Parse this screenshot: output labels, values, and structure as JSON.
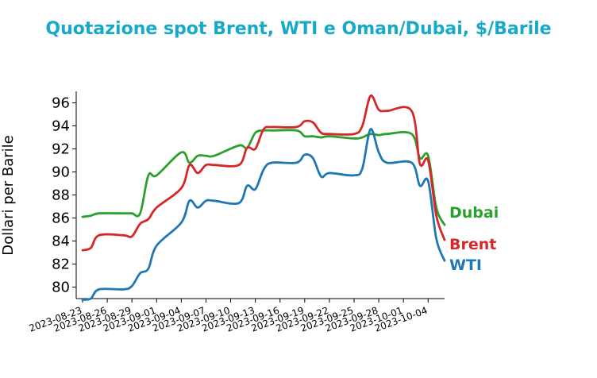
{
  "chart_data": {
    "type": "line",
    "title": "Quotazione spot Brent, WTI e Oman/Dubai, $/Barile",
    "xlabel": "",
    "ylabel": "Dollari per Barile",
    "ylim": [
      79,
      97
    ],
    "xlim": [
      "2023-08-23",
      "2023-10-06"
    ],
    "yticks": [
      80,
      82,
      84,
      86,
      88,
      90,
      92,
      94,
      96
    ],
    "xticks": [
      "2023-08-23",
      "2023-08-26",
      "2023-08-29",
      "2023-09-01",
      "2023-09-04",
      "2023-09-07",
      "2023-09-10",
      "2023-09-13",
      "2023-09-16",
      "2023-09-19",
      "2023-09-22",
      "2023-09-25",
      "2023-09-28",
      "2023-10-01",
      "2023-10-04"
    ],
    "grid": false,
    "legend": "labels at line ends",
    "colors": {
      "Dubai": "#2ca02c",
      "Brent": "#d62728",
      "WTI": "#1f77b4",
      "title": "#17aac8"
    },
    "x": [
      "2023-08-23",
      "2023-08-24",
      "2023-08-25",
      "2023-08-28",
      "2023-08-29",
      "2023-08-30",
      "2023-08-31",
      "2023-09-01",
      "2023-09-04",
      "2023-09-05",
      "2023-09-06",
      "2023-09-07",
      "2023-09-08",
      "2023-09-11",
      "2023-09-12",
      "2023-09-13",
      "2023-09-14",
      "2023-09-15",
      "2023-09-18",
      "2023-09-19",
      "2023-09-20",
      "2023-09-21",
      "2023-09-22",
      "2023-09-25",
      "2023-09-26",
      "2023-09-27",
      "2023-09-28",
      "2023-09-29",
      "2023-10-02",
      "2023-10-03",
      "2023-10-04",
      "2023-10-05",
      "2023-10-06"
    ],
    "series": [
      {
        "name": "Dubai",
        "values": [
          86.1,
          86.2,
          86.4,
          86.4,
          86.4,
          86.4,
          89.7,
          89.7,
          91.7,
          90.8,
          91.4,
          91.4,
          91.4,
          92.3,
          92.1,
          93.4,
          93.6,
          93.6,
          93.6,
          93.1,
          93.1,
          93.0,
          93.1,
          92.9,
          93.0,
          93.3,
          93.2,
          93.3,
          93.3,
          91.2,
          91.4,
          86.9,
          85.4
        ]
      },
      {
        "name": "Brent",
        "values": [
          83.2,
          83.4,
          84.5,
          84.5,
          84.4,
          85.5,
          85.9,
          86.9,
          88.6,
          90.6,
          89.9,
          90.6,
          90.6,
          90.6,
          92.1,
          92.0,
          93.7,
          93.9,
          93.9,
          94.4,
          94.3,
          93.4,
          93.3,
          93.3,
          94.0,
          96.6,
          95.4,
          95.3,
          95.3,
          90.7,
          91.0,
          86.2,
          84.1
        ]
      },
      {
        "name": "WTI",
        "values": [
          78.9,
          79.0,
          79.8,
          79.8,
          80.1,
          81.2,
          81.6,
          83.6,
          85.6,
          87.5,
          86.9,
          87.5,
          87.5,
          87.3,
          88.8,
          88.5,
          90.2,
          90.8,
          90.8,
          91.5,
          91.2,
          89.6,
          89.9,
          89.7,
          90.3,
          93.7,
          91.7,
          90.8,
          90.8,
          88.8,
          89.2,
          84.2,
          82.3
        ]
      }
    ],
    "end_labels": [
      {
        "name": "Dubai",
        "text": "Dubai"
      },
      {
        "name": "Brent",
        "text": "Brent"
      },
      {
        "name": "WTI",
        "text": "WTI"
      }
    ]
  }
}
